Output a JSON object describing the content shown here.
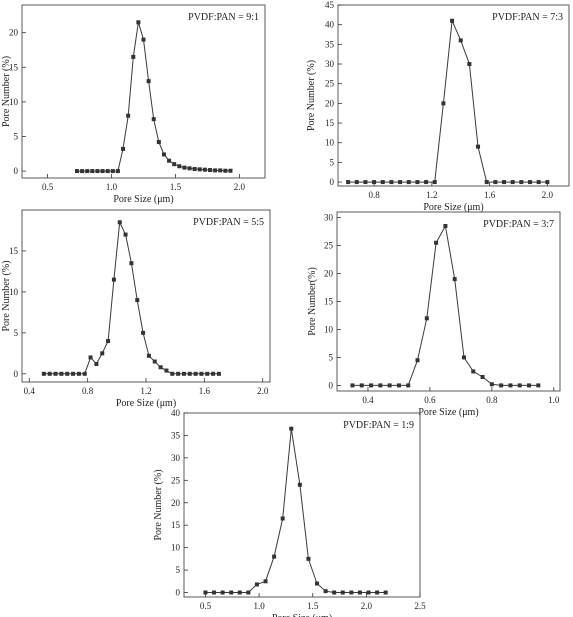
{
  "chart_data": [
    {
      "type": "line",
      "legend": "PVDF:PAN = 9:1",
      "xlabel": "Pore Size (μm)",
      "ylabel": "Pore Number (%)",
      "xlim": [
        0.3,
        2.2
      ],
      "ylim": [
        -1,
        24
      ],
      "xticks": [
        0.5,
        1.0,
        1.5,
        2.0
      ],
      "xtick_labels": [
        "0.5",
        "1.0",
        "1.5",
        "2.0"
      ],
      "yticks": [
        0,
        5,
        10,
        15,
        20
      ],
      "ytick_labels": [
        "0",
        "5",
        "10",
        "15",
        "20"
      ],
      "x": [
        0.73,
        0.77,
        0.81,
        0.85,
        0.89,
        0.93,
        0.97,
        1.01,
        1.05,
        1.09,
        1.13,
        1.17,
        1.21,
        1.25,
        1.29,
        1.33,
        1.37,
        1.41,
        1.45,
        1.49,
        1.53,
        1.57,
        1.61,
        1.65,
        1.69,
        1.73,
        1.77,
        1.81,
        1.85,
        1.89,
        1.93
      ],
      "y": [
        0,
        0,
        0,
        0,
        0,
        0,
        0,
        0,
        0,
        3.2,
        8.0,
        16.5,
        21.5,
        19.0,
        13.0,
        7.5,
        4.2,
        2.4,
        1.5,
        1.0,
        0.7,
        0.5,
        0.4,
        0.3,
        0.25,
        0.2,
        0.15,
        0.1,
        0.1,
        0.05,
        0.05
      ]
    },
    {
      "type": "line",
      "legend": "PVDF:PAN = 7:3",
      "xlabel": "Pore Size (μm)",
      "ylabel": "Pore Number (%)",
      "xlim": [
        0.55,
        2.15
      ],
      "ylim": [
        -1,
        45
      ],
      "xticks": [
        0.8,
        1.2,
        1.6,
        2.0
      ],
      "xtick_labels": [
        "0.8",
        "1.2",
        "1.6",
        "2.0"
      ],
      "yticks": [
        0,
        5,
        10,
        15,
        20,
        25,
        30,
        35,
        40,
        45
      ],
      "ytick_labels": [
        "0",
        "5",
        "10",
        "15",
        "20",
        "25",
        "30",
        "35",
        "40",
        "45"
      ],
      "x": [
        0.62,
        0.68,
        0.74,
        0.8,
        0.86,
        0.92,
        0.98,
        1.04,
        1.1,
        1.16,
        1.22,
        1.28,
        1.34,
        1.4,
        1.46,
        1.52,
        1.58,
        1.64,
        1.7,
        1.76,
        1.82,
        1.88,
        1.94,
        2.0
      ],
      "y": [
        0,
        0,
        0,
        0,
        0,
        0,
        0,
        0,
        0,
        0,
        0,
        20.0,
        41.0,
        36.0,
        30.0,
        9.0,
        0,
        0,
        0,
        0,
        0,
        0,
        0,
        0
      ]
    },
    {
      "type": "line",
      "legend": "PVDF:PAN = 5:5",
      "xlabel": "Pore Size (μm)",
      "ylabel": "Pore Number (%)",
      "xlim": [
        0.35,
        2.05
      ],
      "ylim": [
        -1,
        20
      ],
      "xticks": [
        0.4,
        0.8,
        1.2,
        1.6,
        2.0
      ],
      "xtick_labels": [
        "0.4",
        "0.8",
        "1.2",
        "1.6",
        "2.0"
      ],
      "yticks": [
        0,
        5,
        10,
        15
      ],
      "ytick_labels": [
        "0",
        "5",
        "10",
        "15"
      ],
      "x": [
        0.5,
        0.54,
        0.58,
        0.62,
        0.66,
        0.7,
        0.74,
        0.78,
        0.82,
        0.86,
        0.9,
        0.94,
        0.98,
        1.02,
        1.06,
        1.1,
        1.14,
        1.18,
        1.22,
        1.26,
        1.3,
        1.34,
        1.38,
        1.42,
        1.46,
        1.5,
        1.54,
        1.58,
        1.62,
        1.66,
        1.7
      ],
      "y": [
        0,
        0,
        0,
        0,
        0,
        0,
        0,
        0,
        2.0,
        1.2,
        2.5,
        4.0,
        11.5,
        18.5,
        17.0,
        13.5,
        9.0,
        5.0,
        2.2,
        1.5,
        0.8,
        0.4,
        0,
        0,
        0,
        0,
        0,
        0,
        0,
        0,
        0
      ]
    },
    {
      "type": "line",
      "legend": "PVDF:PAN = 3:7",
      "xlabel": "Pore Size (μm)",
      "ylabel": "Pore Number(%)",
      "xlim": [
        0.3,
        1.02
      ],
      "ylim": [
        -1,
        31
      ],
      "xticks": [
        0.4,
        0.6,
        0.8,
        1.0
      ],
      "xtick_labels": [
        "0.4",
        "0.6",
        "0.8",
        "1.0"
      ],
      "yticks": [
        0,
        5,
        10,
        15,
        20,
        25,
        30
      ],
      "ytick_labels": [
        "0",
        "5",
        "10",
        "15",
        "20",
        "25",
        "30"
      ],
      "x": [
        0.35,
        0.38,
        0.41,
        0.44,
        0.47,
        0.5,
        0.53,
        0.56,
        0.59,
        0.62,
        0.65,
        0.68,
        0.71,
        0.74,
        0.77,
        0.8,
        0.83,
        0.86,
        0.89,
        0.92,
        0.95
      ],
      "y": [
        0,
        0,
        0,
        0,
        0,
        0,
        0,
        4.5,
        12.0,
        25.5,
        28.5,
        19.0,
        5.0,
        2.5,
        1.5,
        0.2,
        0,
        0,
        0,
        0,
        0
      ]
    },
    {
      "type": "line",
      "legend": "PVDF:PAN = 1:9",
      "xlabel": "Pore Size (μm)",
      "ylabel": "Pore Number (%)",
      "xlim": [
        0.3,
        2.5
      ],
      "ylim": [
        -1,
        40
      ],
      "xticks": [
        0.5,
        1.0,
        1.5,
        2.0,
        2.5
      ],
      "xtick_labels": [
        "0.5",
        "1.0",
        "1.5",
        "2.0",
        "2.5"
      ],
      "yticks": [
        0,
        5,
        10,
        15,
        20,
        25,
        30,
        35,
        40
      ],
      "ytick_labels": [
        "0",
        "5",
        "10",
        "15",
        "20",
        "25",
        "30",
        "35",
        "40"
      ],
      "x": [
        0.5,
        0.58,
        0.66,
        0.74,
        0.82,
        0.9,
        0.98,
        1.06,
        1.14,
        1.22,
        1.3,
        1.38,
        1.46,
        1.54,
        1.62,
        1.7,
        1.78,
        1.86,
        1.94,
        2.02,
        2.1,
        2.18
      ],
      "y": [
        0,
        0,
        0,
        0,
        0,
        0,
        1.8,
        2.5,
        8.0,
        16.5,
        36.5,
        24.0,
        7.5,
        2.0,
        0.3,
        0,
        0,
        0,
        0,
        0,
        0,
        0
      ]
    }
  ]
}
